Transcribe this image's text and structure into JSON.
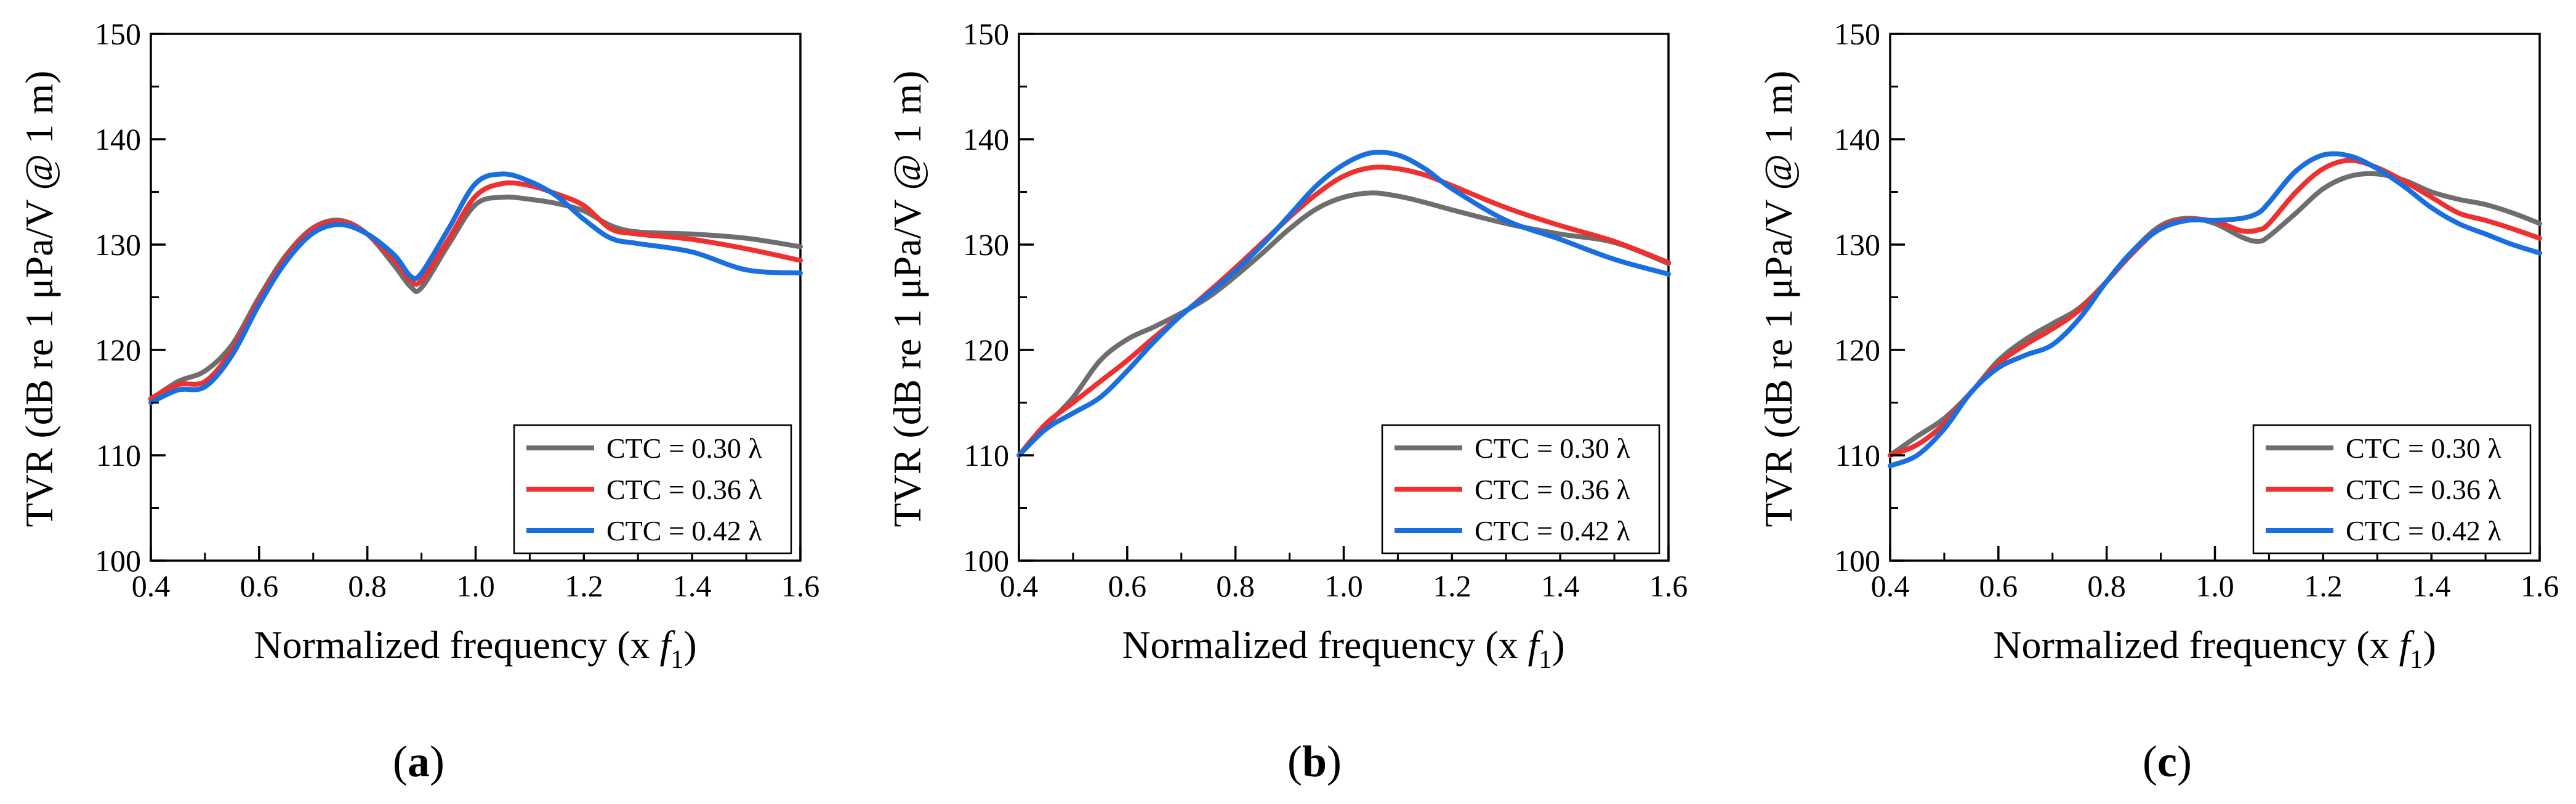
{
  "figure": {
    "panel_labels": [
      "(a)",
      "(b)",
      "(c)"
    ]
  },
  "colors": {
    "CTC = 0.30 λ": "#6e6e6e",
    "CTC = 0.36 λ": "#ef3030",
    "CTC = 0.42 λ": "#1a6fe0"
  },
  "chart_data": [
    {
      "type": "line",
      "panel": "(a)",
      "title": "",
      "xlabel": "Normalized frequency (x f1)",
      "ylabel": "TVR (dB re 1 μPa/V @ 1 m)",
      "xlim": [
        0.4,
        1.6
      ],
      "ylim": [
        100,
        150
      ],
      "xticks": [
        "0.4",
        "0.6",
        "0.8",
        "1.0",
        "1.2",
        "1.4",
        "1.6"
      ],
      "yticks": [
        "100",
        "110",
        "120",
        "130",
        "140",
        "150"
      ],
      "grid": false,
      "legend_position": "bottom-right",
      "x": [
        0.4,
        0.45,
        0.5,
        0.55,
        0.6,
        0.65,
        0.7,
        0.75,
        0.8,
        0.85,
        0.88,
        0.9,
        0.95,
        1.0,
        1.05,
        1.1,
        1.15,
        1.2,
        1.25,
        1.3,
        1.4,
        1.5,
        1.6
      ],
      "series": [
        {
          "name": "CTC = 0.30 λ",
          "values": [
            115.3,
            117.0,
            118.0,
            120.5,
            125.0,
            129.0,
            131.6,
            132.3,
            131.0,
            128.0,
            126.0,
            125.9,
            130.0,
            133.8,
            134.5,
            134.3,
            133.9,
            133.2,
            131.8,
            131.2,
            131.0,
            130.6,
            129.8
          ]
        },
        {
          "name": "CTC = 0.36 λ",
          "values": [
            115.4,
            116.7,
            117.0,
            120.0,
            124.7,
            128.8,
            131.5,
            132.2,
            131.0,
            128.5,
            126.6,
            126.6,
            130.5,
            134.6,
            135.8,
            135.6,
            134.8,
            133.7,
            131.5,
            131.0,
            130.5,
            129.6,
            128.5
          ]
        },
        {
          "name": "CTC = 0.42 λ",
          "values": [
            115.0,
            116.2,
            116.5,
            119.5,
            124.3,
            128.4,
            131.1,
            131.9,
            131.0,
            129.0,
            127.0,
            127.3,
            131.5,
            135.8,
            136.7,
            136.0,
            134.6,
            132.4,
            130.6,
            130.1,
            129.3,
            127.6,
            127.3
          ]
        }
      ]
    },
    {
      "type": "line",
      "panel": "(b)",
      "title": "",
      "xlabel": "Normalized frequency (x f1)",
      "ylabel": "TVR (dB re 1 μPa/V @ 1 m)",
      "xlim": [
        0.4,
        1.6
      ],
      "ylim": [
        100,
        150
      ],
      "xticks": [
        "0.4",
        "0.6",
        "0.8",
        "1.0",
        "1.2",
        "1.4",
        "1.6"
      ],
      "yticks": [
        "100",
        "110",
        "120",
        "130",
        "140",
        "150"
      ],
      "grid": false,
      "legend_position": "bottom-right",
      "x": [
        0.4,
        0.45,
        0.5,
        0.55,
        0.6,
        0.65,
        0.7,
        0.75,
        0.8,
        0.85,
        0.9,
        0.95,
        1.0,
        1.05,
        1.1,
        1.15,
        1.2,
        1.3,
        1.4,
        1.5,
        1.6
      ],
      "series": [
        {
          "name": "CTC = 0.30 λ",
          "values": [
            110.0,
            112.8,
            115.5,
            119.0,
            121.0,
            122.2,
            123.5,
            125.0,
            127.0,
            129.2,
            131.5,
            133.4,
            134.5,
            134.9,
            134.6,
            134.0,
            133.3,
            132.0,
            131.0,
            130.2,
            128.2
          ]
        },
        {
          "name": "CTC = 0.36 λ",
          "values": [
            110.0,
            113.0,
            115.0,
            117.0,
            119.0,
            121.2,
            123.3,
            125.5,
            127.8,
            130.2,
            132.6,
            134.8,
            136.5,
            137.3,
            137.2,
            136.6,
            135.6,
            133.5,
            131.8,
            130.3,
            128.3
          ]
        },
        {
          "name": "CTC = 0.42 λ",
          "values": [
            110.0,
            112.5,
            114.0,
            115.5,
            118.0,
            120.8,
            123.3,
            125.3,
            127.5,
            130.0,
            132.8,
            135.6,
            137.6,
            138.7,
            138.5,
            137.2,
            135.3,
            132.3,
            130.5,
            128.6,
            127.2
          ]
        }
      ]
    },
    {
      "type": "line",
      "panel": "(c)",
      "title": "",
      "xlabel": "Normalized frequency (x f1)",
      "ylabel": "TVR (dB re 1 μPa/V @ 1 m)",
      "xlim": [
        0.4,
        1.6
      ],
      "ylim": [
        100,
        150
      ],
      "xticks": [
        "0.4",
        "0.6",
        "0.8",
        "1.0",
        "1.2",
        "1.4",
        "1.6"
      ],
      "yticks": [
        "100",
        "110",
        "120",
        "130",
        "140",
        "150"
      ],
      "grid": false,
      "legend_position": "bottom-right",
      "x": [
        0.4,
        0.45,
        0.5,
        0.55,
        0.6,
        0.65,
        0.7,
        0.75,
        0.8,
        0.85,
        0.9,
        0.95,
        1.0,
        1.05,
        1.08,
        1.1,
        1.15,
        1.2,
        1.25,
        1.3,
        1.35,
        1.4,
        1.45,
        1.5,
        1.55,
        1.6
      ],
      "series": [
        {
          "name": "CTC = 0.30 λ",
          "values": [
            110.0,
            111.8,
            113.5,
            116.0,
            119.0,
            121.0,
            122.5,
            124.0,
            126.5,
            129.5,
            131.8,
            132.5,
            132.0,
            130.7,
            130.3,
            130.8,
            133.0,
            135.3,
            136.5,
            136.7,
            136.1,
            135.0,
            134.3,
            133.8,
            133.0,
            132.0
          ]
        },
        {
          "name": "CTC = 0.36 λ",
          "values": [
            110.0,
            111.0,
            113.0,
            116.0,
            118.7,
            120.5,
            122.0,
            123.8,
            126.5,
            129.3,
            131.6,
            132.4,
            132.2,
            131.3,
            131.4,
            132.0,
            135.0,
            137.2,
            138.0,
            137.3,
            136.0,
            134.5,
            133.0,
            132.3,
            131.5,
            130.6
          ]
        },
        {
          "name": "CTC = 0.42 λ",
          "values": [
            109.0,
            110.0,
            112.5,
            116.0,
            118.3,
            119.5,
            120.5,
            123.0,
            126.5,
            129.5,
            131.5,
            132.3,
            132.3,
            132.5,
            133.0,
            134.0,
            137.0,
            138.5,
            138.4,
            137.2,
            135.5,
            133.5,
            132.0,
            131.0,
            130.0,
            129.2
          ]
        }
      ]
    }
  ]
}
